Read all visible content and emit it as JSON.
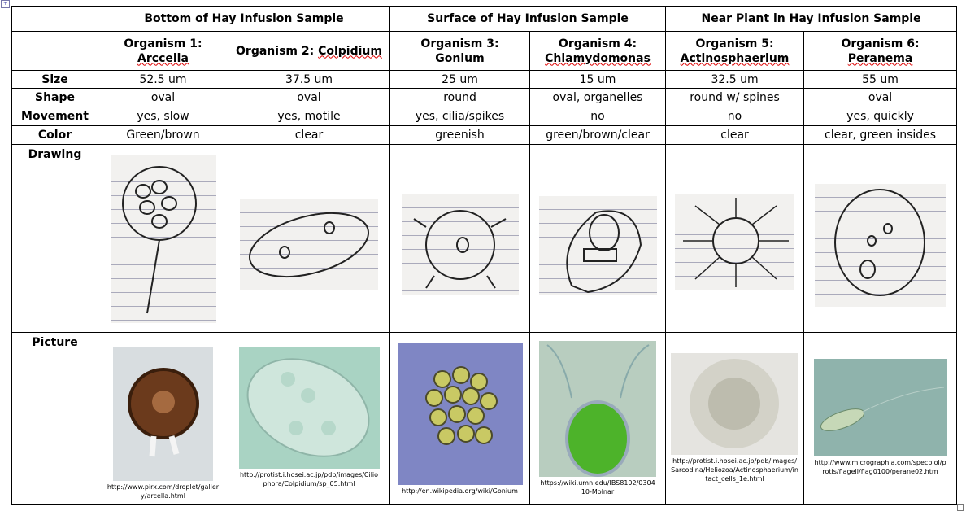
{
  "groups": [
    "Bottom of Hay Infusion Sample",
    "Surface of Hay Infusion Sample",
    "Near Plant in Hay Infusion Sample"
  ],
  "organisms": [
    {
      "label": "Organism 1:",
      "name": "Arccella",
      "size": "52.5 um",
      "shape": "oval",
      "movement": "yes, slow",
      "color": "Green/brown",
      "url": "http://www.pirx.com/droplet/gallery/arcella.html"
    },
    {
      "label": "Organism 2:",
      "name": "Colpidium",
      "size": "37.5 um",
      "shape": "oval",
      "movement": "yes, motile",
      "color": "clear",
      "url": "http://protist.i.hosei.ac.jp/pdb/images/Ciliophora/Colpidium/sp_05.html"
    },
    {
      "label": "Organism 3:",
      "name": "Gonium",
      "size": "25 um",
      "shape": "round",
      "movement": "yes, cilia/spikes",
      "color": "greenish",
      "url": "http://en.wikipedia.org/wiki/Gonium"
    },
    {
      "label": "Organism 4:",
      "name": "Chlamydomonas",
      "size": "15 um",
      "shape": "oval, organelles",
      "movement": "no",
      "color": "green/brown/clear",
      "url": "https://wiki.umn.edu/IBS8102/030410-Molnar"
    },
    {
      "label": "Organism 5:",
      "name": "Actinosphaerium",
      "size": "32.5 um",
      "shape": "round w/ spines",
      "movement": "no",
      "color": "clear",
      "url": "http://protist.i.hosei.ac.jp/pdb/images/Sarcodina/Heliozoa/Actinosphaerium/intact_cells_1e.html"
    },
    {
      "label": "Organism 6:",
      "name": "Peranema",
      "size": "55 um",
      "shape": "oval",
      "movement": "yes, quickly",
      "color": "clear, green insides",
      "url": "http://www.micrographia.com/specbiol/protis/flagell/flag0100/perane02.htm"
    }
  ],
  "rows": {
    "size": "Size",
    "shape": "Shape",
    "movement": "Movement",
    "color": "Color",
    "drawing": "Drawing",
    "picture": "Picture"
  }
}
